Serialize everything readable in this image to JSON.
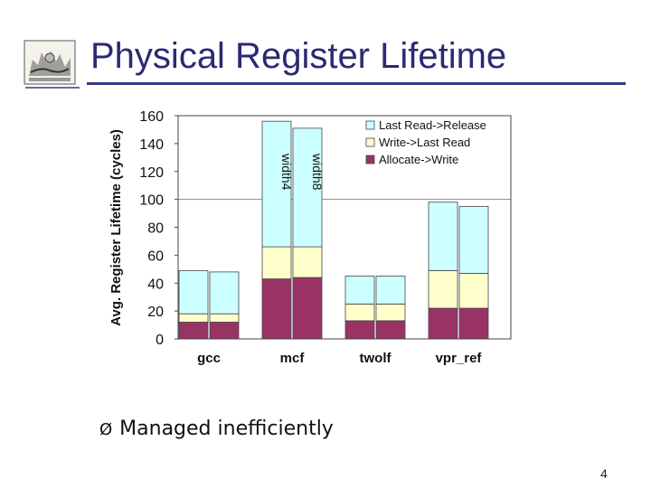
{
  "slide": {
    "title": "Physical Register Lifetime",
    "bullet_marker": "Ø",
    "bullet_text": "Managed inefficiently",
    "page_number": "4",
    "logo_icon": "college-seal-logo-icon"
  },
  "chart_data": {
    "type": "bar",
    "stacked": true,
    "ylabel": "Avg. Register Lifetime (cycles)",
    "ylim": [
      0,
      160
    ],
    "yticks": [
      0,
      20,
      40,
      60,
      80,
      100,
      120,
      140,
      160
    ],
    "categories": [
      "gcc",
      "mcf",
      "twolf",
      "vpr_ref"
    ],
    "bar_labels": [
      "width4",
      "width8"
    ],
    "legend_position": "top-right",
    "series": [
      {
        "name": "Allocate->Write",
        "color": "#993366",
        "values": [
          [
            12,
            12
          ],
          [
            43,
            44
          ],
          [
            13,
            13
          ],
          [
            22,
            22
          ]
        ]
      },
      {
        "name": "Write->Last Read",
        "color": "#ffffcc",
        "values": [
          [
            6,
            6
          ],
          [
            23,
            22
          ],
          [
            12,
            12
          ],
          [
            27,
            25
          ]
        ]
      },
      {
        "name": "Last Read->Release",
        "color": "#ccffff",
        "values": [
          [
            31,
            30
          ],
          [
            90,
            85
          ],
          [
            20,
            20
          ],
          [
            49,
            48
          ]
        ]
      }
    ]
  }
}
